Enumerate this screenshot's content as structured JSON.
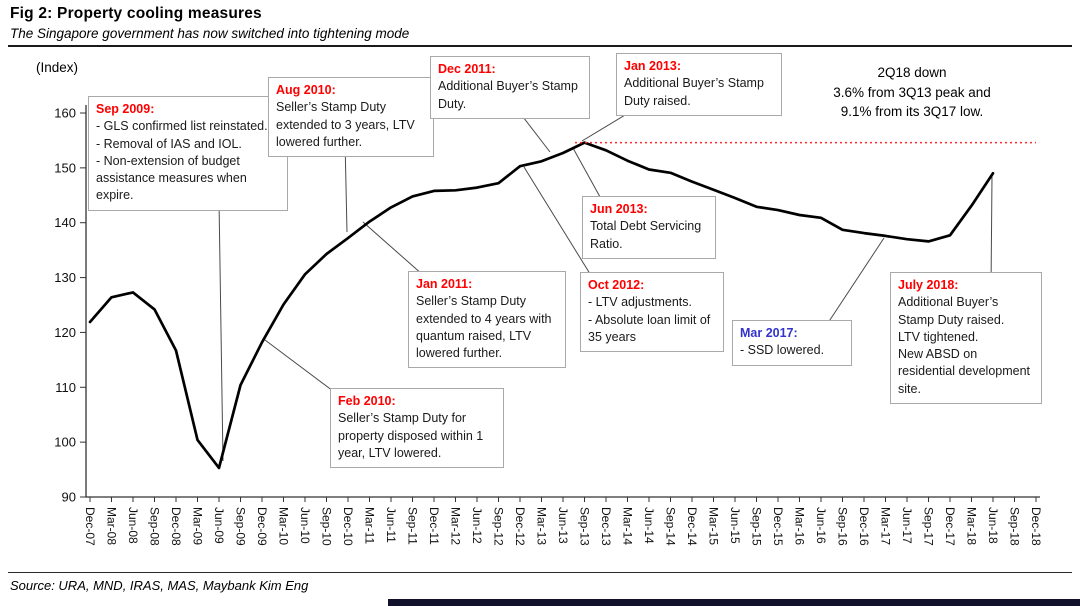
{
  "header": {
    "title": "Fig 2: Property cooling measures",
    "subtitle": "The Singapore government has now switched into tightening mode"
  },
  "axis_unit_label": "(Index)",
  "note": {
    "line1": "2Q18 down",
    "line2": "3.6% from 3Q13 peak and",
    "line3": "9.1% from its 3Q17 low."
  },
  "source": "Source: URA, MND, IRAS, MAS, Maybank Kim Eng",
  "colors": {
    "line": "#000000",
    "annotation_header_red": "#ff0000",
    "annotation_header_blue": "#3333cc",
    "peak_line": "#ff2a2a",
    "axis": "#333333"
  },
  "annotations": [
    {
      "header": "Sep 2009:",
      "accent": "red",
      "body": [
        "- GLS confirmed list reinstated.",
        "- Removal of IAS and IOL.",
        "- Non-extension of budget assistance measures when expire."
      ]
    },
    {
      "header": "Aug 2010:",
      "accent": "red",
      "body": [
        "Seller’s Stamp Duty extended to 3 years, LTV lowered further."
      ]
    },
    {
      "header": "Dec 2011:",
      "accent": "red",
      "body": [
        "Additional Buyer’s Stamp Duty."
      ]
    },
    {
      "header": "Jan 2013:",
      "accent": "red",
      "body": [
        "Additional Buyer’s Stamp Duty raised."
      ]
    },
    {
      "header": "Jun 2013:",
      "accent": "red",
      "body": [
        "Total Debt Servicing Ratio."
      ]
    },
    {
      "header": "Jan 2011:",
      "accent": "red",
      "body": [
        "Seller’s Stamp Duty extended to 4 years with quantum raised, LTV lowered further."
      ]
    },
    {
      "header": "Oct 2012:",
      "accent": "red",
      "body": [
        "- LTV adjustments.",
        "- Absolute loan limit of 35 years"
      ]
    },
    {
      "header": "Feb 2010:",
      "accent": "red",
      "body": [
        "Seller’s Stamp Duty for property disposed within 1 year, LTV lowered."
      ]
    },
    {
      "header": "Mar 2017:",
      "accent": "blue",
      "body": [
        "- SSD lowered."
      ]
    },
    {
      "header": "July 2018:",
      "accent": "red",
      "body": [
        "Additional Buyer’s Stamp Duty raised.",
        "LTV tightened.",
        "New ABSD on residential development site."
      ]
    }
  ],
  "chart_data": {
    "type": "line",
    "title": "Fig 2: Property cooling measures",
    "ylabel": "(Index)",
    "ylim": [
      90,
      160
    ],
    "yticks": [
      90,
      100,
      110,
      120,
      130,
      140,
      150,
      160
    ],
    "grid": false,
    "legend": "none",
    "x_ticks": [
      "Dec-07",
      "Mar-08",
      "Jun-08",
      "Sep-08",
      "Dec-08",
      "Mar-09",
      "Jun-09",
      "Sep-09",
      "Dec-09",
      "Mar-10",
      "Jun-10",
      "Sep-10",
      "Dec-10",
      "Mar-11",
      "Jun-11",
      "Sep-11",
      "Dec-11",
      "Mar-12",
      "Jun-12",
      "Sep-12",
      "Dec-12",
      "Mar-13",
      "Jun-13",
      "Sep-13",
      "Dec-13",
      "Mar-14",
      "Jun-14",
      "Sep-14",
      "Dec-14",
      "Mar-15",
      "Jun-15",
      "Sep-15",
      "Dec-15",
      "Mar-16",
      "Jun-16",
      "Sep-16",
      "Dec-16",
      "Mar-17",
      "Jun-17",
      "Sep-17",
      "Dec-17",
      "Mar-18",
      "Jun-18",
      "Sep-18",
      "Dec-18"
    ],
    "series": [
      {
        "name": "property-price-index",
        "x": [
          "Dec-07",
          "Mar-08",
          "Jun-08",
          "Sep-08",
          "Dec-08",
          "Mar-09",
          "Jun-09",
          "Sep-09",
          "Dec-09",
          "Mar-10",
          "Jun-10",
          "Sep-10",
          "Dec-10",
          "Mar-11",
          "Jun-11",
          "Sep-11",
          "Dec-11",
          "Mar-12",
          "Jun-12",
          "Sep-12",
          "Dec-12",
          "Mar-13",
          "Jun-13",
          "Sep-13",
          "Dec-13",
          "Mar-14",
          "Jun-14",
          "Sep-14",
          "Dec-14",
          "Mar-15",
          "Jun-15",
          "Sep-15",
          "Dec-15",
          "Mar-16",
          "Jun-16",
          "Sep-16",
          "Dec-16",
          "Mar-17",
          "Jun-17",
          "Sep-17",
          "Dec-17",
          "Mar-18",
          "Jun-18"
        ],
        "values": [
          121.9,
          126.4,
          127.3,
          124.2,
          116.7,
          100.4,
          95.3,
          110.4,
          118.2,
          125.1,
          130.6,
          134.3,
          137.2,
          140.2,
          142.8,
          144.8,
          145.8,
          145.9,
          146.4,
          147.2,
          150.3,
          151.2,
          152.7,
          154.6,
          153.2,
          151.3,
          149.7,
          149.1,
          147.5,
          146.0,
          144.5,
          142.9,
          142.3,
          141.4,
          140.9,
          138.7,
          138.1,
          137.6,
          137.0,
          136.6,
          137.7,
          143.1,
          149.0
        ]
      }
    ],
    "peak_reference_value": 154.6,
    "peak_reference_line": "red dotted horizontal line at 3Q13 peak level extending to right edge"
  }
}
